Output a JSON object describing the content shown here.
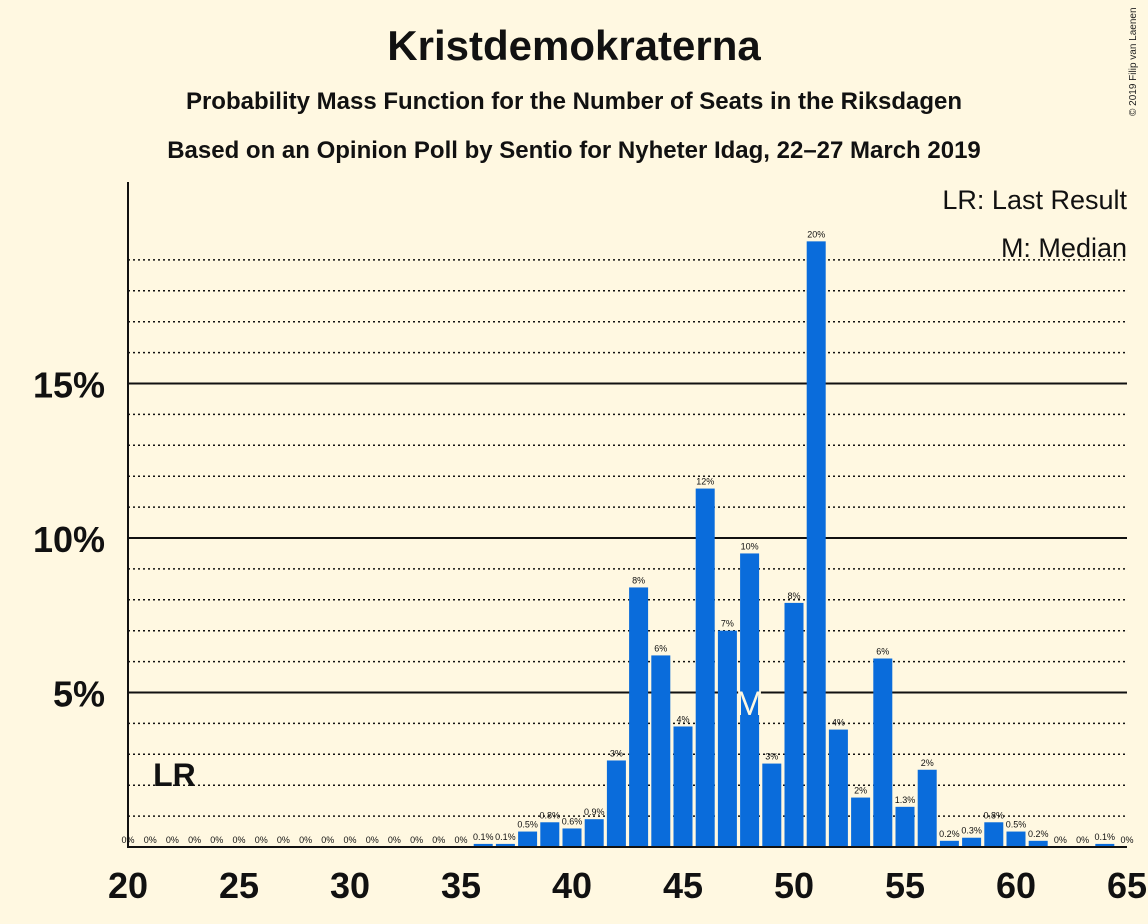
{
  "title": "Kristdemokraterna",
  "subtitle1": "Probability Mass Function for the Number of Seats in the Riksdagen",
  "subtitle2": "Based on an Opinion Poll by Sentio for Nyheter Idag, 22–27 March 2019",
  "copyright": "© 2019 Filip van Laenen",
  "colors": {
    "bar": "#0A6CDB",
    "background": "#FFF8E1",
    "axis": "#111111"
  },
  "chart_data": {
    "type": "bar",
    "x": [
      20,
      21,
      22,
      23,
      24,
      25,
      26,
      27,
      28,
      29,
      30,
      31,
      32,
      33,
      34,
      35,
      36,
      37,
      38,
      39,
      40,
      41,
      42,
      43,
      44,
      45,
      46,
      47,
      48,
      49,
      50,
      51,
      52,
      53,
      54,
      55,
      56,
      57,
      58,
      59,
      60,
      61,
      62,
      63,
      64,
      65
    ],
    "values": [
      0,
      0,
      0,
      0,
      0,
      0,
      0,
      0,
      0,
      0,
      0,
      0,
      0,
      0,
      0,
      0,
      0.1,
      0.1,
      0.5,
      0.8,
      0.6,
      0.9,
      2.8,
      8.4,
      6.2,
      3.9,
      11.6,
      7.0,
      9.5,
      2.7,
      7.9,
      19.6,
      3.8,
      1.6,
      6.1,
      1.3,
      2.5,
      0.2,
      0.3,
      0.8,
      0.5,
      0.2,
      0,
      0,
      0.1,
      0
    ],
    "labels": [
      "0%",
      "0%",
      "0%",
      "0%",
      "0%",
      "0%",
      "0%",
      "0%",
      "0%",
      "0%",
      "0%",
      "0%",
      "0%",
      "0%",
      "0%",
      "0%",
      "0.1%",
      "0.1%",
      "0.5%",
      "0.8%",
      "0.6%",
      "0.9%",
      "3%",
      "8%",
      "6%",
      "4%",
      "12%",
      "7%",
      "10%",
      "3%",
      "8%",
      "20%",
      "4%",
      "2%",
      "6%",
      "1.3%",
      "2%",
      "0.2%",
      "0.3%",
      "0.8%",
      "0.5%",
      "0.2%",
      "0%",
      "0%",
      "0.1%",
      "0%"
    ],
    "xticks": [
      20,
      25,
      30,
      35,
      40,
      45,
      50,
      55,
      60,
      65
    ],
    "yticks": [
      {
        "value": 5,
        "label": "5%"
      },
      {
        "value": 10,
        "label": "10%"
      },
      {
        "value": 15,
        "label": "15%"
      }
    ],
    "ylim": [
      0,
      21
    ],
    "grid": "dotted minor every 1%, solid major every 5%",
    "last_result": {
      "seat": 22,
      "label": "LR"
    },
    "median": {
      "seat": 48,
      "label": "M"
    },
    "legend": [
      "LR: Last Result",
      "M: Median"
    ],
    "legend_position": "top-right"
  }
}
